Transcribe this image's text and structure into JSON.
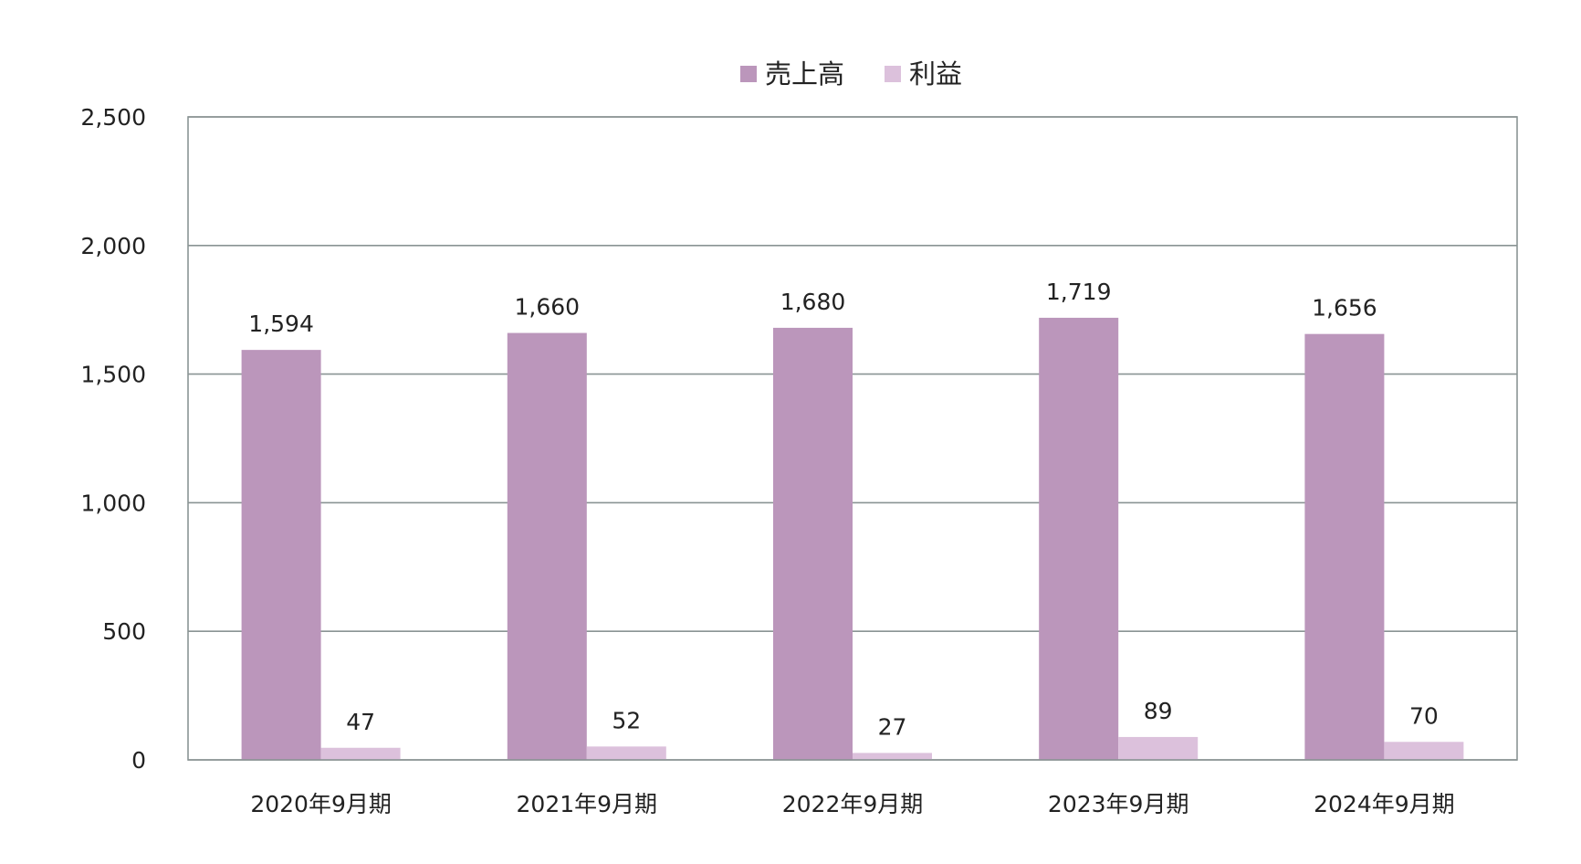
{
  "chart_data": {
    "type": "bar",
    "categories": [
      "2020年9月期",
      "2021年9月期",
      "2022年9月期",
      "2023年9月期",
      "2024年9月期"
    ],
    "series": [
      {
        "name": "売上高",
        "values": [
          1594,
          1660,
          1680,
          1719,
          1656
        ],
        "labels": [
          "1,594",
          "1,660",
          "1,680",
          "1,719",
          "1,656"
        ],
        "color": "#bb96bb"
      },
      {
        "name": "利益",
        "values": [
          47,
          52,
          27,
          89,
          70
        ],
        "labels": [
          "47",
          "52",
          "27",
          "89",
          "70"
        ],
        "color": "#dcc1dc"
      }
    ],
    "ylim": [
      0,
      2500
    ],
    "yticks": [
      0,
      500,
      1000,
      1500,
      2000,
      2500
    ],
    "ytick_labels": [
      "0",
      "500",
      "1,000",
      "1,500",
      "2,000",
      "2,500"
    ],
    "grid": true,
    "legend_position": "top-center",
    "title": "",
    "xlabel": "",
    "ylabel": ""
  }
}
